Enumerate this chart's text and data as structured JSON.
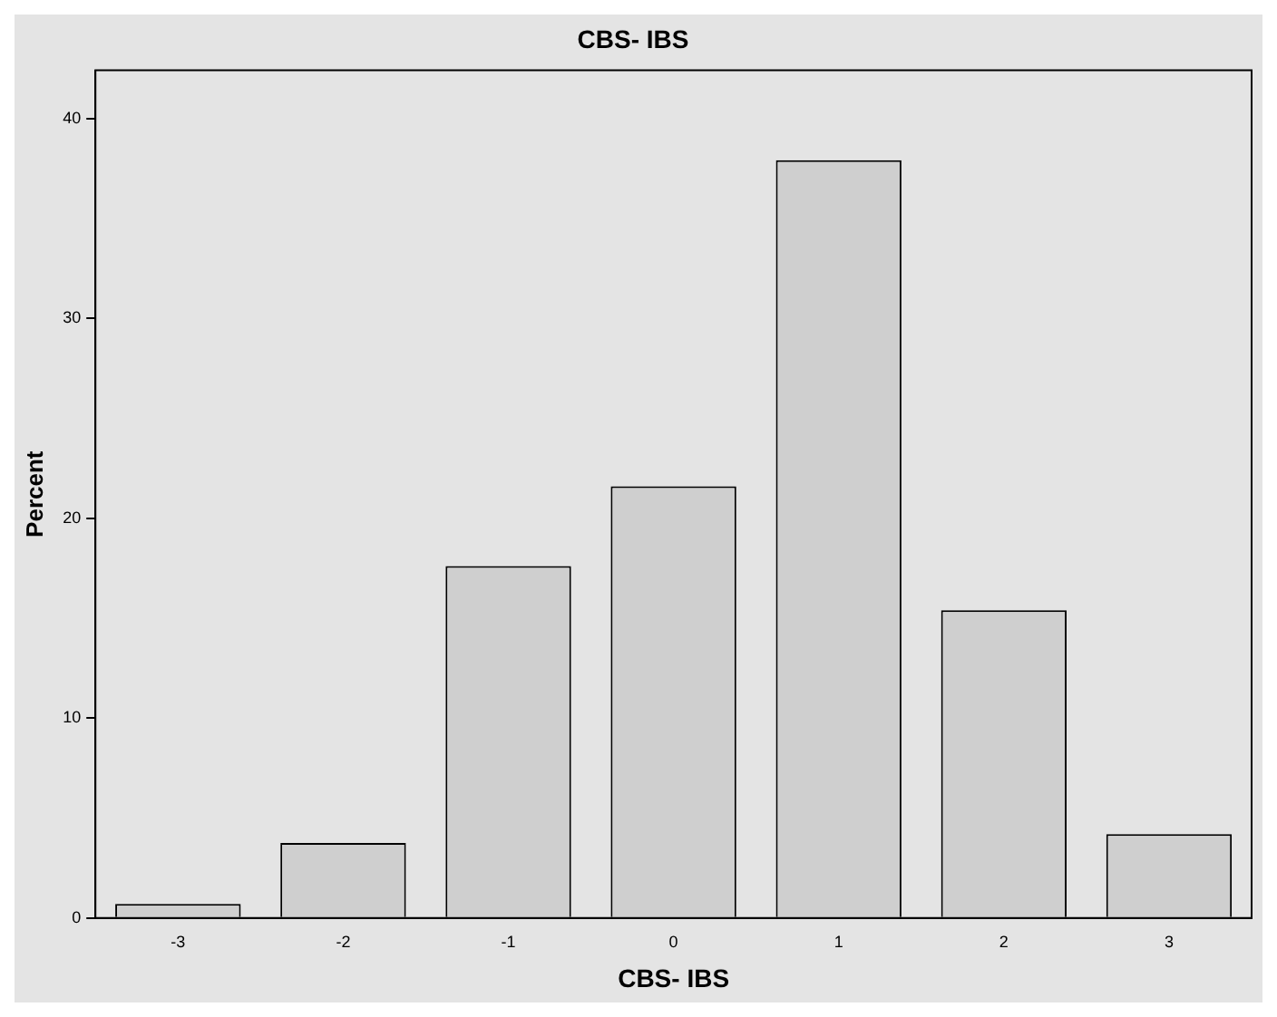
{
  "chart_data": {
    "type": "bar",
    "title": "CBS- IBS",
    "xlabel": "CBS- IBS",
    "ylabel": "Percent",
    "categories": [
      "-3",
      "-2",
      "-1",
      "0",
      "1",
      "2",
      "3"
    ],
    "values": [
      0.7,
      3.75,
      17.6,
      21.6,
      37.9,
      15.4,
      4.2
    ],
    "color": "#cfcfcf",
    "ylim": [
      0,
      42.4
    ],
    "yticks": [
      0,
      10,
      20,
      30,
      40
    ],
    "grid": false,
    "legend": false
  }
}
